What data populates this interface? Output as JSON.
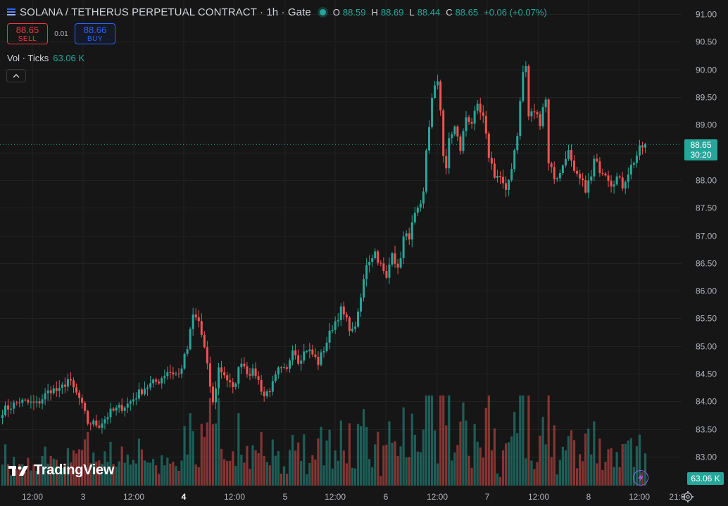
{
  "header": {
    "symbol_title": "SOLANA / TETHERUS PERPETUAL CONTRACT · 1h · Gate",
    "o_label": "O",
    "o_value": "88.59",
    "h_label": "H",
    "h_value": "88.69",
    "l_label": "L",
    "l_value": "88.44",
    "c_label": "C",
    "c_value": "88.65",
    "change": "+0.06 (+0.07%)"
  },
  "trade": {
    "sell_price": "88.65",
    "sell_label": "SELL",
    "spread": "0.01",
    "buy_price": "88.66",
    "buy_label": "BUY"
  },
  "volume_legend": {
    "label": "Vol · Ticks",
    "value": "63.06 K"
  },
  "collapse_icon": "chevron-up-icon",
  "branding": {
    "logo_text": "TradingView"
  },
  "price_scale": {
    "last_price": "88.65",
    "countdown": "30:20",
    "volume_label": "63.06 K"
  },
  "colors": {
    "up": "#26a69a",
    "down": "#ef5350",
    "background": "#161616",
    "grid": "#222222"
  },
  "chart_data": {
    "type": "candlestick",
    "interval": "1h",
    "y_axis_ticks": [
      91.0,
      90.5,
      90.0,
      89.5,
      89.0,
      88.5,
      88.0,
      87.5,
      87.0,
      86.5,
      86.0,
      85.5,
      85.0,
      84.5,
      84.0,
      83.5,
      83.0
    ],
    "y_axis_labels": [
      "91.00",
      "90.50",
      "90.00",
      "89.50",
      "89.00",
      "88.50",
      "88.00",
      "87.50",
      "87.00",
      "86.50",
      "86.00",
      "85.50",
      "85.00",
      "84.50",
      "84.00",
      "83.50",
      "83.00"
    ],
    "ylim": [
      82.6,
      91.25
    ],
    "x_axis_labels": [
      "12:00",
      "3",
      "12:00",
      "4",
      "12:00",
      "5",
      "12:00",
      "6",
      "12:00",
      "7",
      "12:00",
      "8",
      "12:00",
      "21:0"
    ],
    "last_price": 88.65,
    "keypoints": [
      [
        0,
        83.83
      ],
      [
        6,
        84.0
      ],
      [
        12,
        83.95
      ],
      [
        17,
        84.22
      ],
      [
        20,
        84.18
      ],
      [
        23,
        84.4
      ],
      [
        27,
        84.05
      ],
      [
        30,
        83.62
      ],
      [
        34,
        83.58
      ],
      [
        38,
        83.8
      ],
      [
        44,
        83.95
      ],
      [
        50,
        84.25
      ],
      [
        55,
        84.38
      ],
      [
        58,
        84.55
      ],
      [
        62,
        84.48
      ],
      [
        65,
        84.95
      ],
      [
        67,
        85.55
      ],
      [
        69,
        85.45
      ],
      [
        71,
        84.95
      ],
      [
        74,
        83.95
      ],
      [
        76,
        84.6
      ],
      [
        78,
        84.5
      ],
      [
        81,
        84.2
      ],
      [
        84,
        84.75
      ],
      [
        86,
        84.55
      ],
      [
        89,
        84.5
      ],
      [
        92,
        84.1
      ],
      [
        95,
        84.3
      ],
      [
        97,
        84.55
      ],
      [
        100,
        84.55
      ],
      [
        102,
        85.0
      ],
      [
        104,
        84.75
      ],
      [
        107,
        84.95
      ],
      [
        109,
        84.85
      ],
      [
        111,
        84.7
      ],
      [
        113,
        84.95
      ],
      [
        116,
        85.35
      ],
      [
        119,
        85.65
      ],
      [
        121,
        85.45
      ],
      [
        123,
        85.25
      ],
      [
        125,
        85.55
      ],
      [
        128,
        86.5
      ],
      [
        131,
        86.7
      ],
      [
        133,
        86.45
      ],
      [
        135,
        86.2
      ],
      [
        137,
        86.75
      ],
      [
        139,
        86.35
      ],
      [
        141,
        86.95
      ],
      [
        143,
        87.0
      ],
      [
        145,
        87.35
      ],
      [
        147,
        87.5
      ],
      [
        148,
        87.75
      ],
      [
        149,
        88.55
      ],
      [
        150,
        89.0
      ],
      [
        151,
        89.45
      ],
      [
        152,
        89.65
      ],
      [
        153,
        89.8
      ],
      [
        154,
        89.3
      ],
      [
        155,
        88.45
      ],
      [
        156,
        88.15
      ],
      [
        157,
        88.75
      ],
      [
        159,
        88.95
      ],
      [
        161,
        88.55
      ],
      [
        163,
        89.15
      ],
      [
        165,
        89.05
      ],
      [
        167,
        89.3
      ],
      [
        169,
        89.1
      ],
      [
        171,
        88.45
      ],
      [
        173,
        88.1
      ],
      [
        175,
        88.05
      ],
      [
        177,
        87.75
      ],
      [
        179,
        88.25
      ],
      [
        181,
        88.85
      ],
      [
        183,
        89.95
      ],
      [
        184,
        90.05
      ],
      [
        185,
        89.15
      ],
      [
        187,
        89.25
      ],
      [
        189,
        89.05
      ],
      [
        190,
        89.35
      ],
      [
        191,
        89.45
      ],
      [
        192,
        88.35
      ],
      [
        194,
        88.05
      ],
      [
        196,
        88.1
      ],
      [
        198,
        88.45
      ],
      [
        199,
        88.5
      ],
      [
        201,
        88.1
      ],
      [
        203,
        88.0
      ],
      [
        205,
        87.85
      ],
      [
        207,
        88.05
      ],
      [
        208,
        88.35
      ],
      [
        210,
        88.2
      ],
      [
        212,
        88.15
      ],
      [
        214,
        87.95
      ],
      [
        216,
        88.05
      ],
      [
        218,
        87.9
      ],
      [
        220,
        88.15
      ],
      [
        222,
        88.35
      ],
      [
        224,
        88.55
      ],
      [
        225,
        88.6
      ],
      [
        226,
        88.65
      ]
    ],
    "candle_count": 227,
    "volume": {
      "label": "Vol · Ticks",
      "last": 63060,
      "unit": "ticks"
    }
  }
}
